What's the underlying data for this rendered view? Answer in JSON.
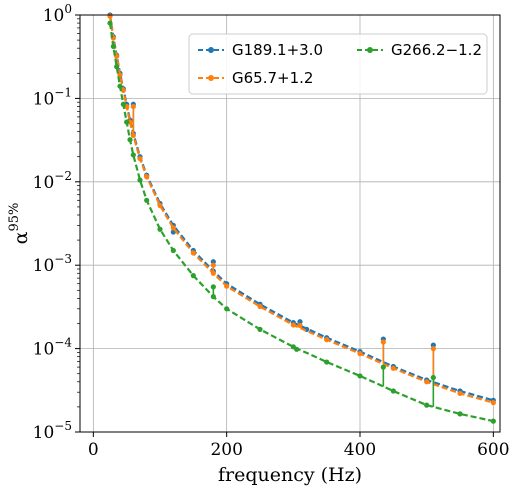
{
  "chart_data": {
    "type": "line",
    "xlabel": "frequency (Hz)",
    "ylabel": "α",
    "ylabel_superscript": "95%",
    "xlim": [
      -20,
      610
    ],
    "ylim": [
      1e-05,
      1
    ],
    "yscale": "log",
    "grid": true,
    "legend_position": "top-right",
    "x_ticks": [
      0,
      200,
      400,
      600
    ],
    "x_tick_labels": [
      "0",
      "200",
      "400",
      "600"
    ],
    "y_ticks": [
      1e-05,
      0.0001,
      0.001,
      0.01,
      0.1,
      1
    ],
    "y_tick_labels": [
      {
        "base": "10",
        "exp": "−5"
      },
      {
        "base": "10",
        "exp": "−4"
      },
      {
        "base": "10",
        "exp": "−3"
      },
      {
        "base": "10",
        "exp": "−2"
      },
      {
        "base": "10",
        "exp": "−1"
      },
      {
        "base": "10",
        "exp": "0"
      }
    ],
    "x": [
      25,
      30,
      35,
      40,
      45,
      50,
      55,
      60,
      70,
      80,
      100,
      120,
      150,
      180,
      200,
      250,
      300,
      350,
      400,
      450,
      500,
      550,
      600
    ],
    "series": [
      {
        "name": "G189.1+3.0",
        "color": "#1f77b4",
        "values": [
          1.0,
          0.55,
          0.33,
          0.2,
          0.13,
          0.085,
          0.055,
          0.038,
          0.02,
          0.012,
          0.0055,
          0.003,
          0.0015,
          0.00085,
          0.0006,
          0.00034,
          0.000205,
          0.000135,
          9.2e-05,
          6.1e-05,
          4.2e-05,
          3.1e-05,
          2.4e-05
        ],
        "peaks": [
          [
            60,
            0.085
          ],
          [
            120,
            0.0025
          ],
          [
            180,
            0.0011
          ],
          [
            310,
            0.00021
          ],
          [
            320,
            0.00017
          ],
          [
            435,
            0.00013
          ],
          [
            510,
            0.00011
          ]
        ]
      },
      {
        "name": "G65.7+1.2",
        "color": "#ff7f0e",
        "values": [
          0.97,
          0.53,
          0.32,
          0.19,
          0.125,
          0.08,
          0.052,
          0.036,
          0.019,
          0.0115,
          0.0052,
          0.0028,
          0.0014,
          0.0008,
          0.00056,
          0.00032,
          0.000192,
          0.000128,
          8.7e-05,
          5.8e-05,
          4e-05,
          2.9e-05,
          2.25e-05
        ],
        "peaks": [
          [
            60,
            0.08
          ],
          [
            180,
            0.001
          ],
          [
            310,
            0.00019
          ],
          [
            435,
            0.00012
          ],
          [
            510,
            0.0001
          ]
        ]
      },
      {
        "name": "G266.2−1.2",
        "color": "#2ca02c",
        "values": [
          0.8,
          0.42,
          0.24,
          0.14,
          0.085,
          0.052,
          0.032,
          0.021,
          0.0105,
          0.006,
          0.0027,
          0.0015,
          0.00075,
          0.00042,
          0.0003,
          0.00017,
          0.000105,
          6.9e-05,
          4.7e-05,
          3.1e-05,
          2.1e-05,
          1.65e-05,
          1.35e-05
        ],
        "peaks": [
          [
            180,
            0.00055
          ],
          [
            305,
            9.8e-05
          ],
          [
            435,
            6e-05
          ],
          [
            510,
            4.5e-05
          ]
        ]
      }
    ]
  }
}
